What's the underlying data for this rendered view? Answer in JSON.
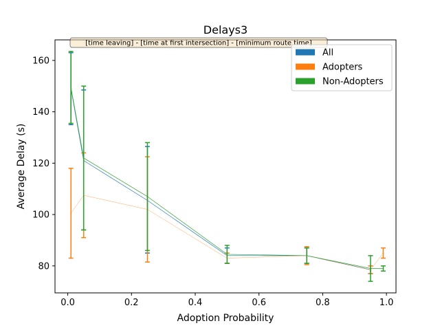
{
  "chart_data": {
    "type": "line",
    "title": "Delays3",
    "xlabel": "Adoption Probability",
    "ylabel": "Average Delay (s)",
    "xlim": [
      -0.04,
      1.03
    ],
    "ylim": [
      69.5,
      168
    ],
    "xticks": [
      0.0,
      0.2,
      0.4,
      0.6,
      0.8,
      1.0
    ],
    "xtick_labels": [
      "0.0",
      "0.2",
      "0.4",
      "0.6",
      "0.8",
      "1.0"
    ],
    "yticks": [
      80,
      100,
      120,
      140,
      160
    ],
    "ytick_labels": [
      "80",
      "100",
      "120",
      "140",
      "160"
    ],
    "grid": false,
    "legend_position": "upper-right",
    "annotation": "[time leaving] - [time at first intersection] - [minimum route time]",
    "series": [
      {
        "name": "All",
        "color": "#1f77b4",
        "points": [
          {
            "x": 0.01,
            "y": 149.0,
            "lo": 135.0,
            "hi": 163.0
          },
          {
            "x": 0.05,
            "y": 121.0,
            "lo": 94.0,
            "hi": 148.5
          },
          {
            "x": 0.25,
            "y": 105.5,
            "lo": 85.0,
            "hi": 126.5
          },
          {
            "x": 0.5,
            "y": 84.0,
            "lo": 81.0,
            "hi": 87.0
          },
          {
            "x": 0.75,
            "y": 84.0,
            "lo": 81.0,
            "hi": 87.0
          },
          {
            "x": 0.95,
            "y": 78.5,
            "lo": 77.0,
            "hi": 80.0
          }
        ]
      },
      {
        "name": "Adopters",
        "color": "#ff7f0e",
        "points": [
          {
            "x": 0.01,
            "y": 100.5,
            "lo": 83.0,
            "hi": 118.0
          },
          {
            "x": 0.05,
            "y": 107.5,
            "lo": 91.0,
            "hi": 124.0
          },
          {
            "x": 0.25,
            "y": 102.0,
            "lo": 81.5,
            "hi": 122.5
          },
          {
            "x": 0.5,
            "y": 83.0,
            "lo": 81.0,
            "hi": 85.0
          },
          {
            "x": 0.75,
            "y": 84.0,
            "lo": 80.5,
            "hi": 87.5
          },
          {
            "x": 0.95,
            "y": 78.5,
            "lo": 77.0,
            "hi": 80.0
          },
          {
            "x": 0.99,
            "y": 85.0,
            "lo": 83.0,
            "hi": 87.0
          }
        ]
      },
      {
        "name": "Non-Adopters",
        "color": "#2ca02c",
        "points": [
          {
            "x": 0.01,
            "y": 149.5,
            "lo": 135.5,
            "hi": 163.5
          },
          {
            "x": 0.05,
            "y": 122.0,
            "lo": 94.0,
            "hi": 150.0
          },
          {
            "x": 0.25,
            "y": 107.0,
            "lo": 86.0,
            "hi": 128.0
          },
          {
            "x": 0.5,
            "y": 84.5,
            "lo": 81.0,
            "hi": 88.0
          },
          {
            "x": 0.75,
            "y": 84.0,
            "lo": 81.0,
            "hi": 87.0
          },
          {
            "x": 0.95,
            "y": 79.0,
            "lo": 74.0,
            "hi": 84.0
          },
          {
            "x": 0.99,
            "y": 79.0,
            "lo": 78.0,
            "hi": 80.0
          }
        ]
      }
    ]
  }
}
